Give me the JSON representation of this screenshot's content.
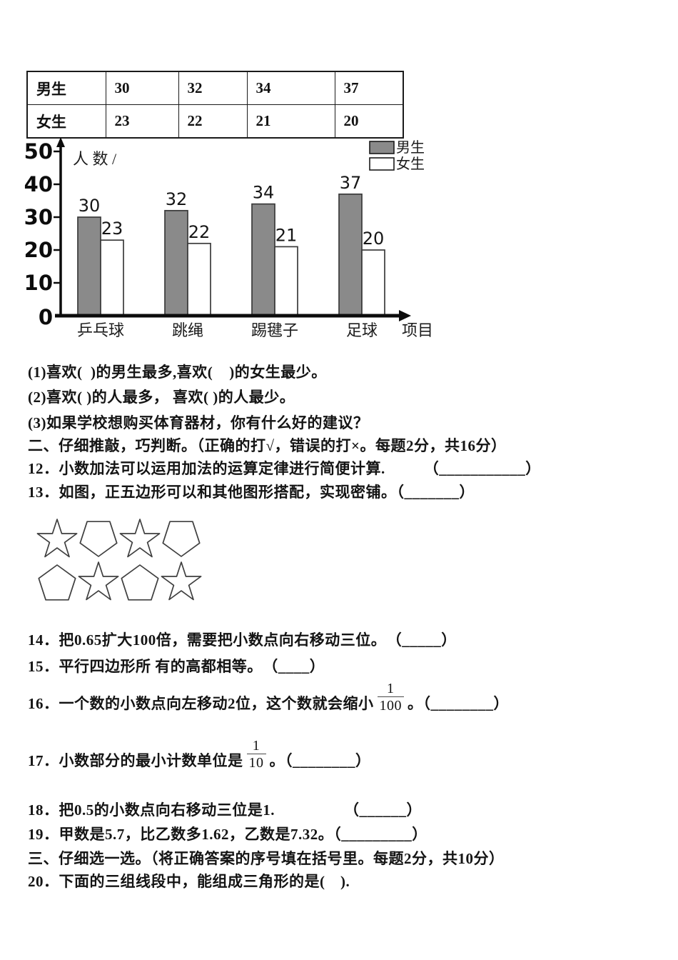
{
  "table": {
    "rows": [
      {
        "label": "男生",
        "values": [
          "30",
          "32",
          "34",
          "37"
        ]
      },
      {
        "label": "女生",
        "values": [
          "23",
          "22",
          "21",
          "20"
        ]
      }
    ]
  },
  "chart_data": {
    "type": "bar",
    "title": "",
    "ylabel": "人 数 /",
    "xlabel": "项目",
    "categories": [
      "乒乓球",
      "跳绳",
      "踢毽子",
      "足球"
    ],
    "series": [
      {
        "name": "男生",
        "color": "#8a8a8a",
        "values": [
          30,
          32,
          34,
          37
        ]
      },
      {
        "name": "女生",
        "color": "#ffffff",
        "values": [
          23,
          22,
          21,
          20
        ]
      }
    ],
    "ylim": [
      0,
      50
    ],
    "yticks": [
      0,
      10,
      20,
      30,
      40,
      50
    ],
    "grid": false,
    "legend_position": "top-right"
  },
  "questions": {
    "q1": "(1)喜欢(  )的男生最多,喜欢(    )的女生最少。",
    "q2": "(2)喜欢( )的人最多， 喜欢( )的人最少。",
    "q3": "(3)如果学校想购买体育器材，你有什么好的建议？",
    "section2": "二、仔细推敲，巧判断。（正确的打√，错误的打×。每题2分，共16分）",
    "q12": "12．小数加法可以运用加法的运算定律进行简便计算.　　　（___________）",
    "q13": "13．如图，正五边形可以和其他图形搭配，实现密铺。（_______）",
    "q14": "14．把0.65扩大100倍，需要把小数点向右移动三位。　（_____）",
    "q15": "15．平行四边形所 有的高都相等。　（____）",
    "q16_prefix": "16．一个数的小数点向左移动2位，这个数就会缩小",
    "q16_frac_num": "1",
    "q16_frac_den": "100",
    "q16_suffix": "。（________）",
    "q17_prefix": "17．小数部分的最小计数单位是",
    "q17_frac_num": "1",
    "q17_frac_den": "10",
    "q17_suffix": "。（________）",
    "q18": "18．把0.5的小数点向右移动三位是1.　　　　　（______）",
    "q19": "19．甲数是5.7，比乙数多1.62，乙数是7.32。（_________）",
    "section3": "三、仔细选一选。（将正确答案的序号填在括号里。每题2分，共10分）",
    "q20": "20．下面的三组线段中，能组成三角形的是(　)."
  }
}
